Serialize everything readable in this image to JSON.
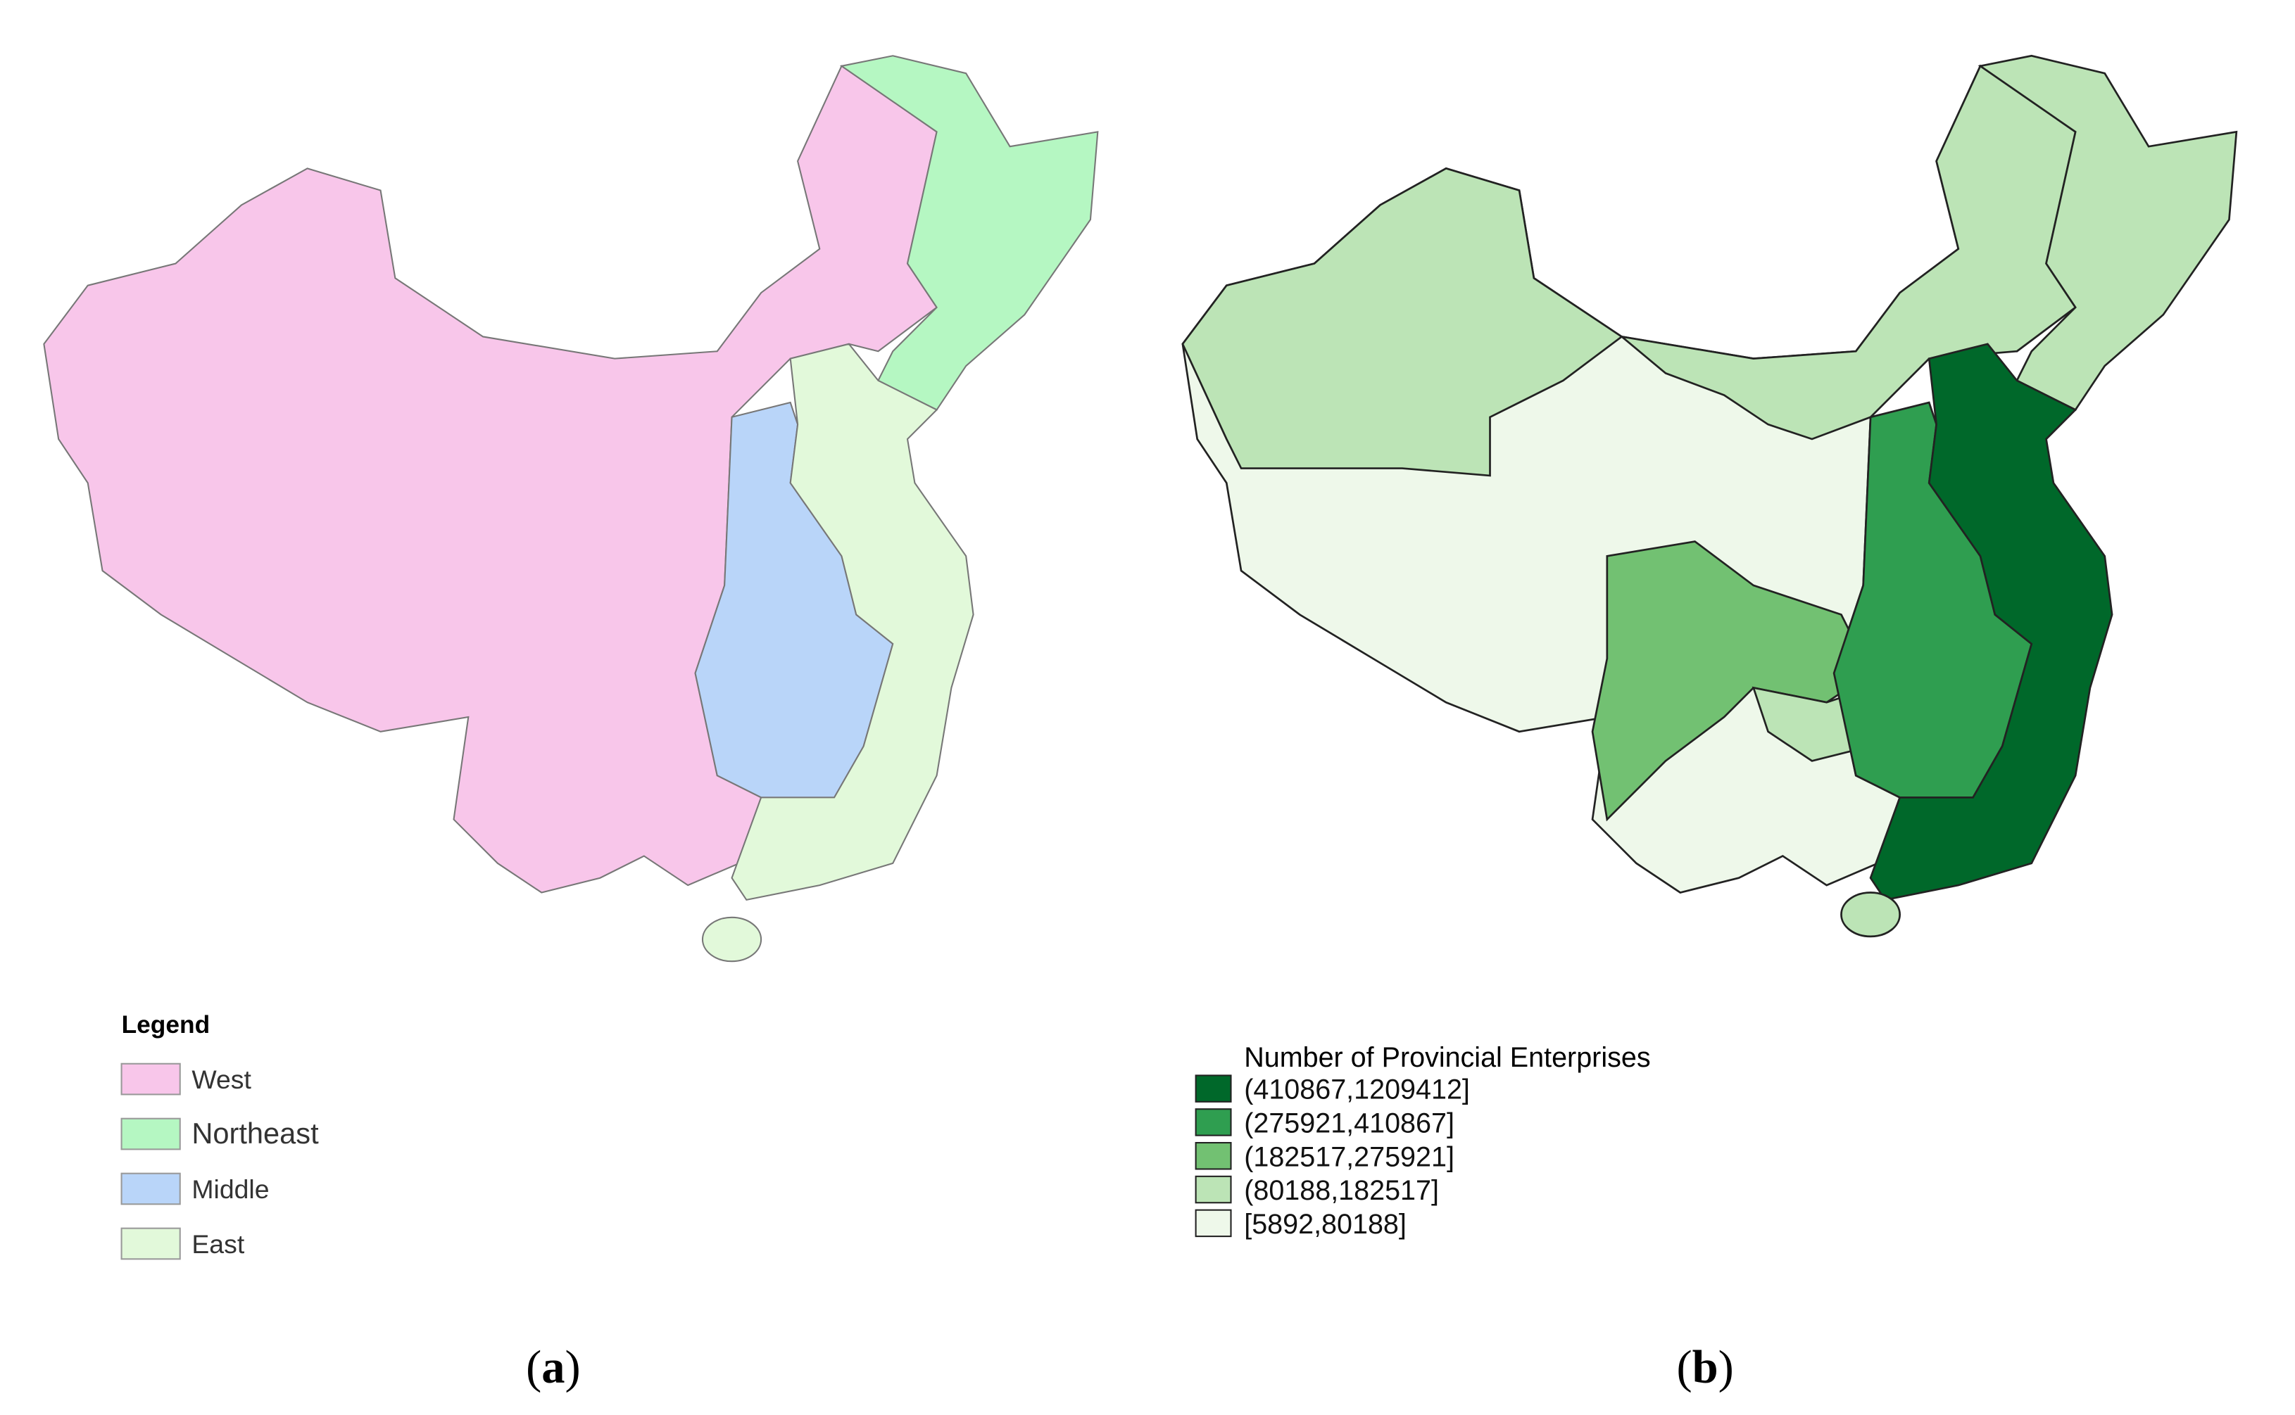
{
  "panel_a": {
    "legend_title": "Legend",
    "legend": [
      {
        "name": "West",
        "color": "#f8c6ea"
      },
      {
        "name": "Northeast",
        "color": "#b5f7c2"
      },
      {
        "name": "Middle",
        "color": "#b9d5f9"
      },
      {
        "name": "East",
        "color": "#e2f9da"
      }
    ],
    "caption": {
      "open": "(",
      "letter": "a",
      "close": ")"
    }
  },
  "panel_b": {
    "legend_title": "Number of Provincial Enterprises",
    "legend": [
      {
        "label": "(410867,1209412]",
        "color": "#00682a"
      },
      {
        "label": "(275921,410867]",
        "color": "#2f9e50"
      },
      {
        "label": "(182517,275921]",
        "color": "#72c172"
      },
      {
        "label": "(80188,182517]",
        "color": "#bce4b6"
      },
      {
        "label": "[5892,80188]",
        "color": "#eef8ea"
      }
    ],
    "caption": {
      "open": "(",
      "letter": "b",
      "close": ")"
    }
  }
}
